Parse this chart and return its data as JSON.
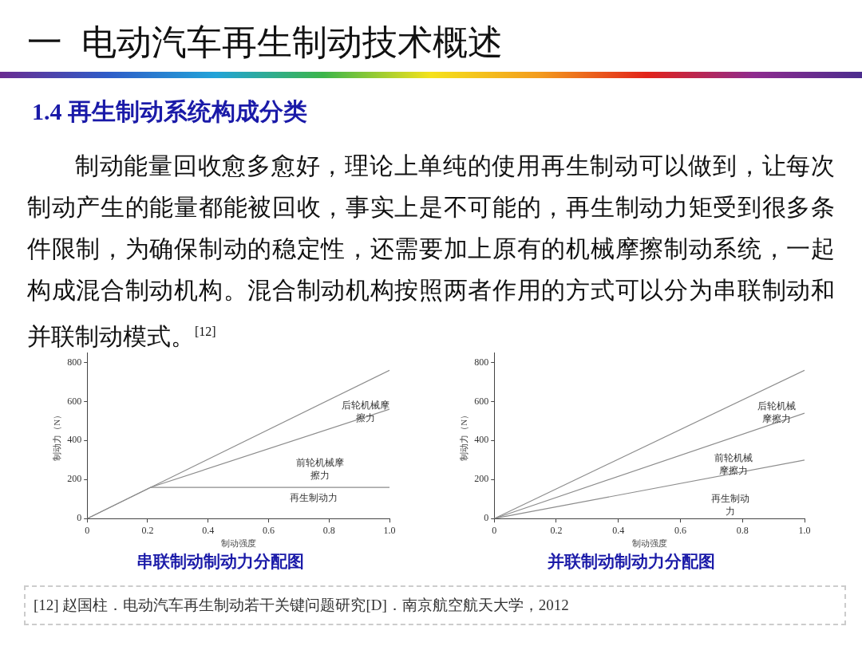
{
  "chart_data": [
    {
      "type": "line",
      "title": "串联制动制动力分配图",
      "xlabel": "制动强度",
      "ylabel": "制动力（N）",
      "xlim": [
        0,
        1.0
      ],
      "xticks": [
        0,
        0.2,
        0.4,
        0.6,
        0.8,
        {
          "value": 1.0,
          "label": "1.0"
        }
      ],
      "ylim": [
        0,
        850
      ],
      "yticks": [
        0,
        200,
        400,
        600,
        800
      ],
      "grid": false,
      "legend": false,
      "marker": "none",
      "line_style": "solid",
      "series": [
        {
          "color": "#8c8c8c",
          "x": [
            0,
            1.0
          ],
          "values": [
            0,
            760
          ]
        },
        {
          "color": "#8c8c8c",
          "x": [
            0.21,
            1.0
          ],
          "values": [
            160,
            560
          ]
        },
        {
          "color": "#8c8c8c",
          "x": [
            0,
            0.21,
            1.0
          ],
          "values": [
            0,
            160,
            160
          ]
        }
      ],
      "annotations": [
        "一  电动汽车再生制动技术概述",
        "1.4 再生制动系统构成分类",
        "制动能量回收愈多愈好，理论上单纯的使用再生制动可以做到，让每次制动产生的能量都能被回收，事实上是不可能的，再生制动力矩受到很多条件限制，为确保制动的稳定性，还需要加上原有的机械摩擦制动系统，一起构成混合制动机构。混合制动机构按照两者作用的方式可以分为串联制动和并联制动模式。$^{[12]}$",
        "后轮机械摩擦力",
        "前轮机械摩擦力",
        "再生制动力"
      ]
    },
    {
      "type": "line",
      "title": "并联制动制动力分配图",
      "xlabel": "制动强度",
      "ylabel": "制动力（N）",
      "xlim": [
        0,
        1.0
      ],
      "xticks": [
        0,
        0.2,
        0.4,
        0.6,
        0.8,
        {
          "value": 1.0,
          "label": "1.0"
        }
      ],
      "ylim": [
        0,
        850
      ],
      "yticks": [
        0,
        200,
        400,
        600,
        800
      ],
      "grid": false,
      "legend": false,
      "marker": "none",
      "line_style": "solid",
      "series": [
        {
          "color": "#8c8c8c",
          "x": [
            0,
            1.0
          ],
          "values": [
            0,
            760
          ]
        },
        {
          "color": "#8c8c8c",
          "x": [
            0,
            1.0
          ],
          "values": [
            0,
            540
          ]
        },
        {
          "color": "#8c8c8c",
          "x": [
            0,
            1.0
          ],
          "values": [
            0,
            300
          ]
        }
      ],
      "annotations": [
        "[12] 赵国柱．电动汽车再生制动若干关键问题研究[D]．南京航空航天大学，2012",
        "后轮机械摩擦力",
        "前轮机械摩擦力",
        "再生制动力"
      ]
    }
  ]
}
